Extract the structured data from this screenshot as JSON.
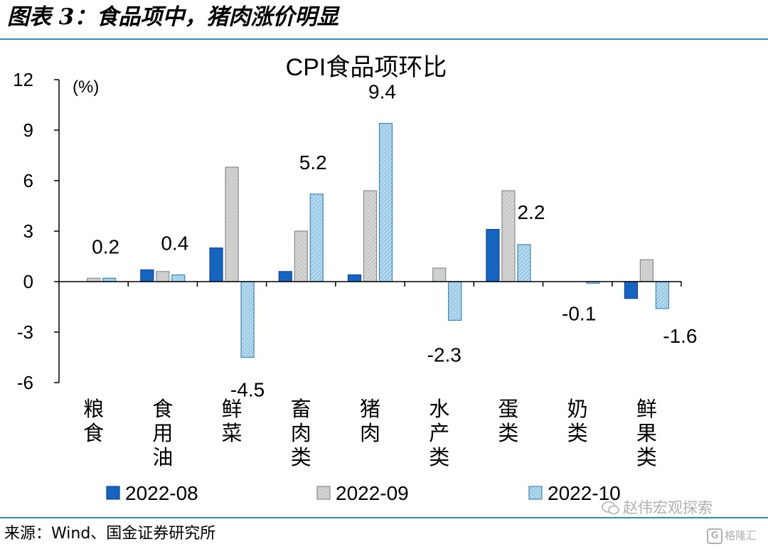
{
  "figure_title": "图表 3：食品项中，猪肉涨价明显",
  "source_note": "来源：Wind、国金证券研究所",
  "watermark": "赵伟宏观探索",
  "badge": "格隆汇",
  "colors": {
    "rule": "#2e8fbf",
    "series_1": "#1565c0",
    "series_2": "#c9c9c9",
    "series_3": "#9ecbe6"
  },
  "chart_data": {
    "type": "bar",
    "title": "CPI食品项环比",
    "unit_label": "(%)",
    "ylim": [
      -6,
      12
    ],
    "yticks": [
      -6,
      -3,
      0,
      3,
      6,
      9,
      12
    ],
    "grid": false,
    "legend_position": "bottom",
    "categories": [
      "粮食",
      "食用油",
      "鲜菜",
      "畜肉类",
      "猪肉",
      "水产类",
      "蛋类",
      "奶类",
      "鲜果类"
    ],
    "series": [
      {
        "name": "2022-08",
        "values": [
          0.0,
          0.7,
          2.0,
          0.6,
          0.4,
          0.0,
          3.1,
          0.0,
          -1.0
        ]
      },
      {
        "name": "2022-09",
        "values": [
          0.2,
          0.6,
          6.8,
          3.0,
          5.4,
          0.8,
          5.4,
          0.0,
          1.3
        ]
      },
      {
        "name": "2022-10",
        "values": [
          0.2,
          0.4,
          -4.5,
          5.2,
          9.4,
          -2.3,
          2.2,
          -0.1,
          -1.6
        ]
      }
    ],
    "data_labels": [
      "0.2",
      "0.4",
      "-4.5",
      "5.2",
      "9.4",
      "-2.3",
      "2.2",
      "-0.1",
      "-1.6"
    ]
  }
}
